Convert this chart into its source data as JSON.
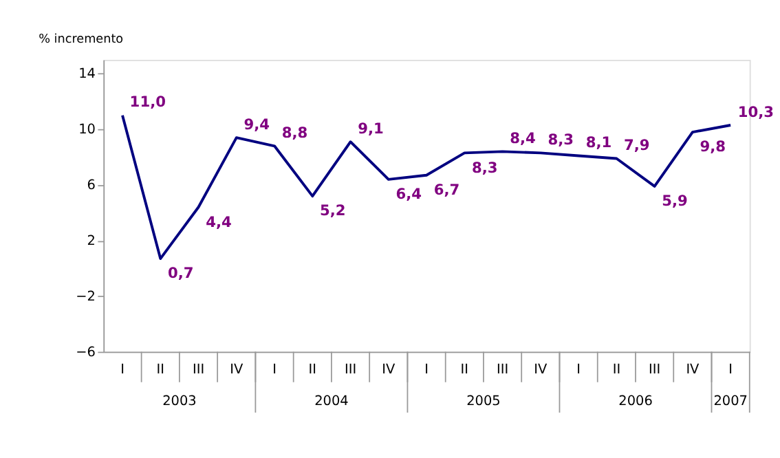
{
  "chart_data": {
    "type": "line",
    "ylabel": "% incremento",
    "categories": [
      "I",
      "II",
      "III",
      "IV",
      "I",
      "II",
      "III",
      "IV",
      "I",
      "II",
      "III",
      "IV",
      "I",
      "II",
      "III",
      "IV",
      "I"
    ],
    "series": [
      {
        "color": "#000080",
        "values": [
          11.0,
          0.7,
          4.4,
          9.4,
          8.8,
          5.2,
          9.1,
          6.4,
          6.7,
          8.3,
          8.4,
          8.3,
          8.1,
          7.9,
          5.9,
          9.8,
          10.3
        ],
        "value_labels": [
          "11,0",
          "0,7",
          "4,4",
          "9,4",
          "8,8",
          "5,2",
          "9,1",
          "6,4",
          "6,7",
          "8,3",
          "8,4",
          "8,3",
          "8,1",
          "7,9",
          "5,9",
          "9,8",
          "10,3"
        ]
      }
    ],
    "annotations": [
      "2003",
      "2004",
      "2005",
      "2006",
      "2007"
    ],
    "ylim": [
      -6,
      15
    ],
    "yticks": [
      -6,
      -2,
      2,
      6,
      10,
      14
    ],
    "grid": false,
    "marker": "none",
    "line_style": "solid"
  }
}
